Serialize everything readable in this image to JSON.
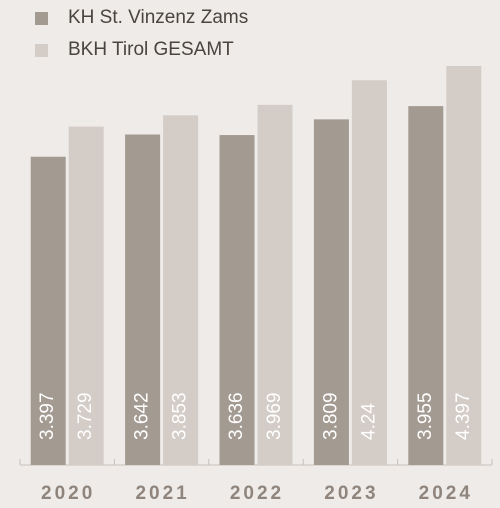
{
  "chart_data": {
    "type": "bar",
    "categories": [
      "2020",
      "2021",
      "2022",
      "2023",
      "2024"
    ],
    "series": [
      {
        "name": "KH St. Vinzenz Zams",
        "color": "#a39a92",
        "values": [
          3.397,
          3.642,
          3.636,
          3.809,
          3.955
        ]
      },
      {
        "name": "BKH Tirol GESAMT",
        "color": "#d3ccc7",
        "values": [
          3.729,
          3.853,
          3.969,
          4.24,
          4.397
        ]
      }
    ]
  }
}
